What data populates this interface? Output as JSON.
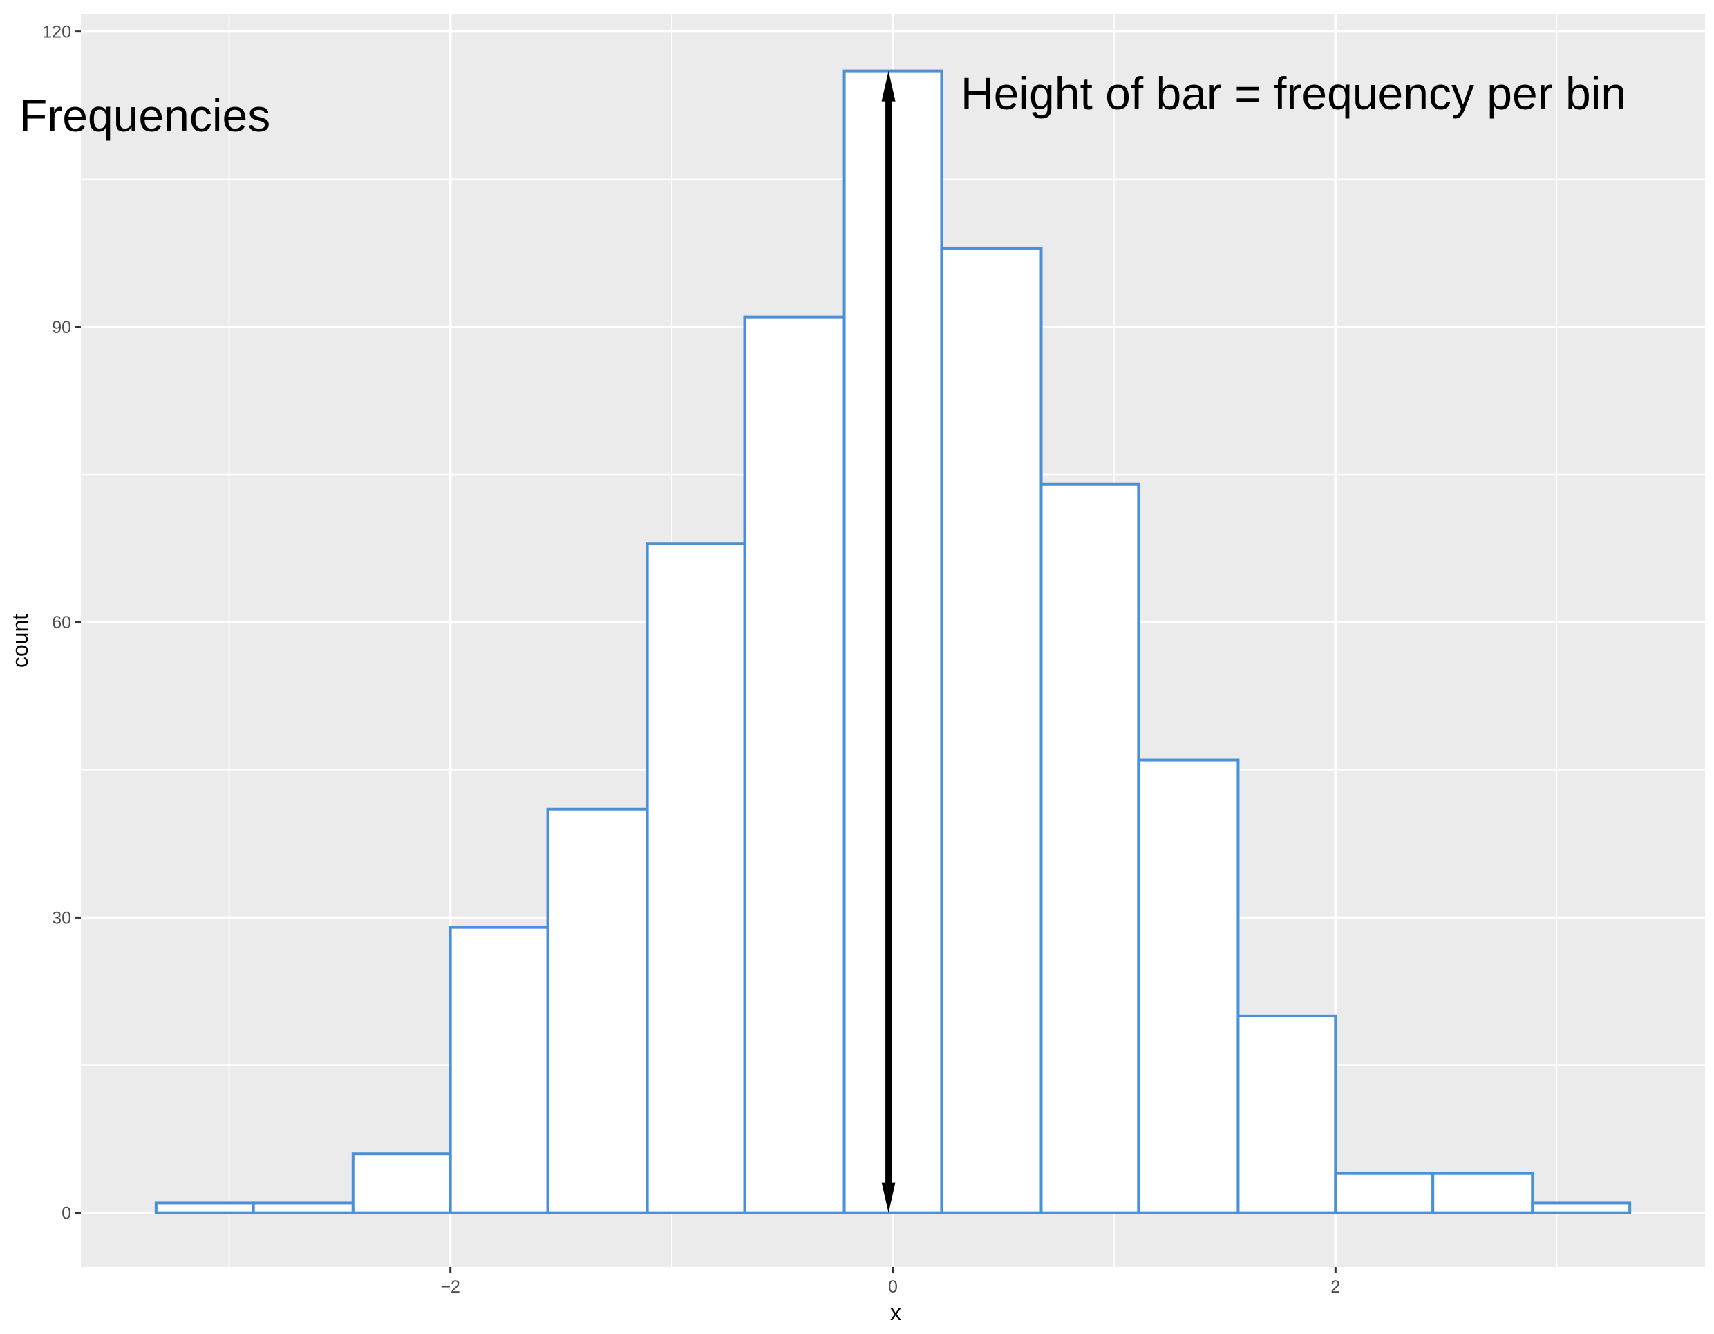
{
  "chart_data": {
    "type": "bar",
    "subtype": "histogram",
    "bins": [
      {
        "x0": -3.33,
        "x1": -2.89,
        "count": 1
      },
      {
        "x0": -2.89,
        "x1": -2.44,
        "count": 1
      },
      {
        "x0": -2.44,
        "x1": -2.0,
        "count": 6
      },
      {
        "x0": -2.0,
        "x1": -1.56,
        "count": 29
      },
      {
        "x0": -1.56,
        "x1": -1.11,
        "count": 41
      },
      {
        "x0": -1.11,
        "x1": -0.67,
        "count": 68
      },
      {
        "x0": -0.67,
        "x1": -0.22,
        "count": 91
      },
      {
        "x0": -0.22,
        "x1": 0.22,
        "count": 116
      },
      {
        "x0": 0.22,
        "x1": 0.67,
        "count": 98
      },
      {
        "x0": 0.67,
        "x1": 1.11,
        "count": 74
      },
      {
        "x0": 1.11,
        "x1": 1.56,
        "count": 46
      },
      {
        "x0": 1.56,
        "x1": 2.0,
        "count": 20
      },
      {
        "x0": 2.0,
        "x1": 2.44,
        "count": 4
      },
      {
        "x0": 2.44,
        "x1": 2.89,
        "count": 4
      },
      {
        "x0": 2.89,
        "x1": 3.33,
        "count": 1
      }
    ],
    "xlabel": "x",
    "ylabel": "count",
    "xlim": [
      -3.67,
      3.67
    ],
    "ylim": [
      -5.5,
      121.8
    ],
    "x_ticks": [
      -2,
      0,
      2
    ],
    "x_tick_labels": [
      "−2",
      "0",
      "2"
    ],
    "y_ticks": [
      0,
      30,
      60,
      90,
      120
    ],
    "y_tick_labels": [
      "0",
      "30",
      "60",
      "90",
      "120"
    ],
    "grid": true,
    "fill_color": "#ffffff",
    "outline_color": "#4a90d9",
    "panel_color": "#ebebeb",
    "annotations": {
      "left_label": "Frequencies",
      "arrow_label": "Height of bar = frequency per bin",
      "arrow": {
        "x": -0.02,
        "y_from": 0,
        "y_to": 116
      }
    }
  }
}
